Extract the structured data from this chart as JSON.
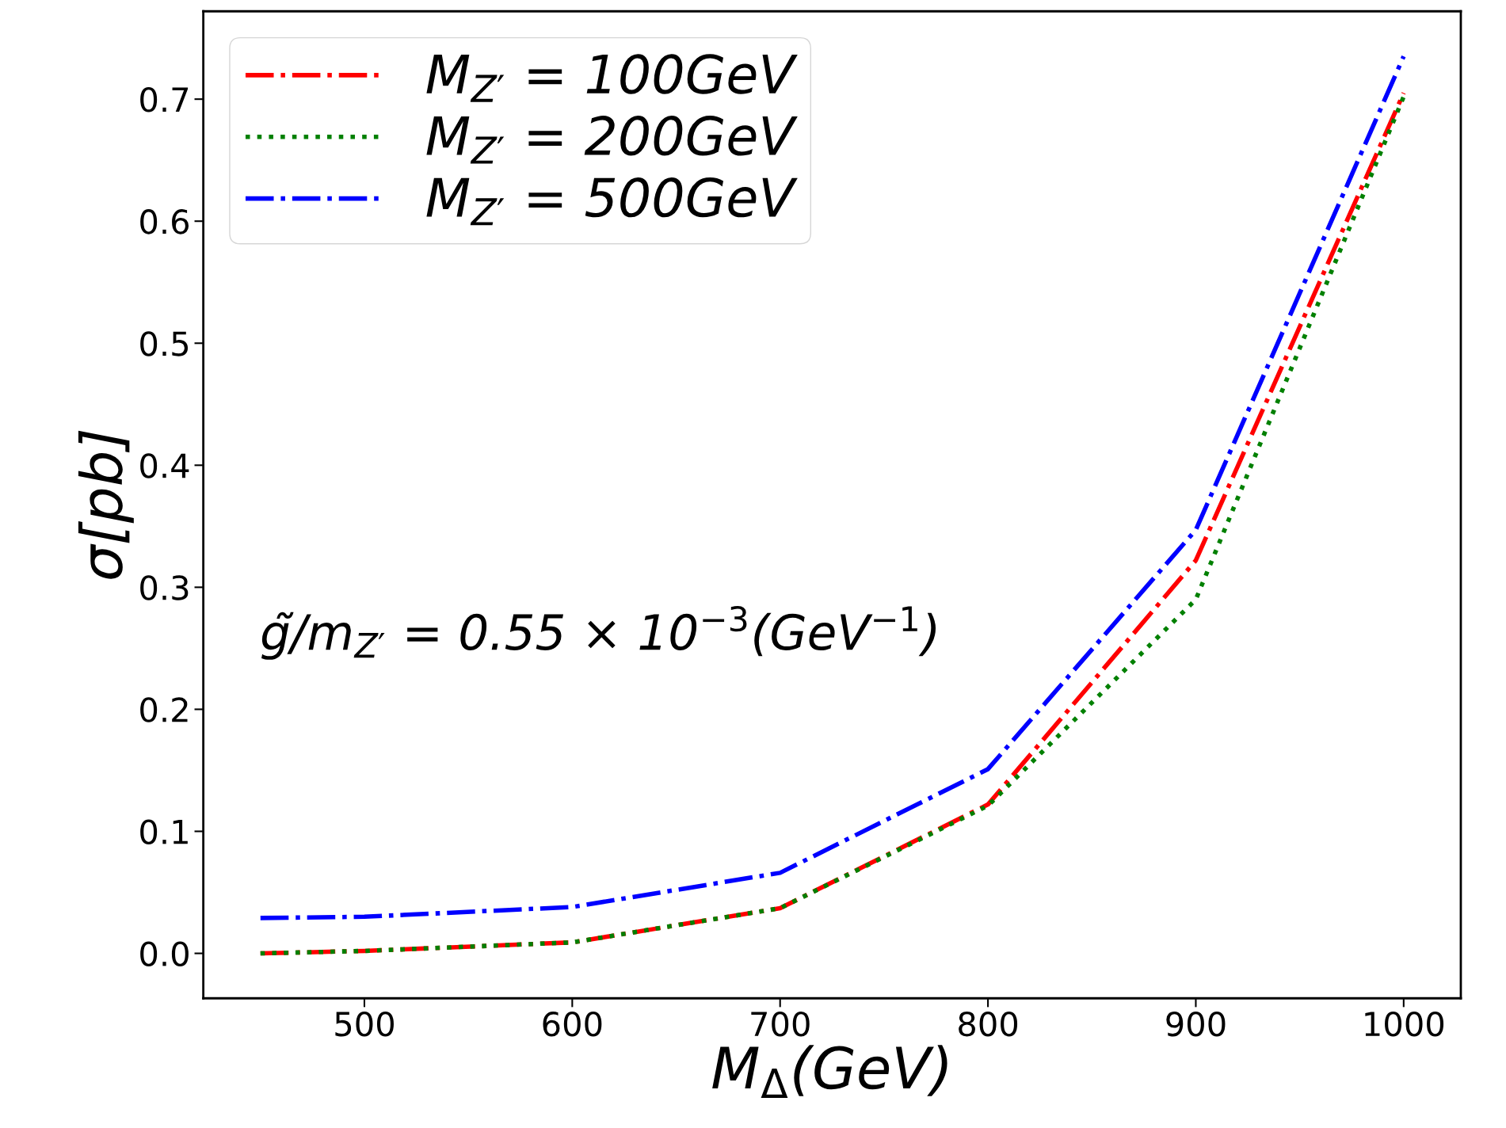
{
  "chart_data": {
    "type": "line",
    "xlabel": "M$_{Δ}$(GeV)",
    "ylabel": "σ[pb]",
    "x": [
      450,
      500,
      600,
      700,
      800,
      900,
      1000
    ],
    "series": [
      {
        "name": "M$_{Z′}$ = 100GeV",
        "color": "#ff0000",
        "line_style": "dashdot",
        "values": [
          0.0,
          0.002,
          0.009,
          0.037,
          0.122,
          0.322,
          0.705
        ]
      },
      {
        "name": "M$_{Z′}$ = 200GeV",
        "color": "#008000",
        "line_style": "dotted",
        "values": [
          0.0,
          0.002,
          0.009,
          0.037,
          0.121,
          0.29,
          0.702
        ]
      },
      {
        "name": "M$_{Z′}$ = 500GeV",
        "color": "#0000ff",
        "line_style": "dashdot",
        "values": [
          0.029,
          0.03,
          0.038,
          0.066,
          0.151,
          0.347,
          0.735
        ]
      }
    ],
    "annotations": [
      "g̃/m$_{Z′}$ = 0.55 × 10$^{−3}$(GeV$^{−1}$)"
    ],
    "xlim": [
      422.5,
      1027.5
    ],
    "ylim": [
      -0.0368,
      0.772
    ],
    "xticks": [
      500,
      600,
      700,
      800,
      900,
      1000
    ],
    "yticks": [
      {
        "value": 0,
        "label": "0.0"
      },
      0.1,
      0.2,
      0.3,
      0.4,
      0.5,
      0.6,
      0.7
    ],
    "grid": false,
    "legend": "top left",
    "marker": "none"
  }
}
